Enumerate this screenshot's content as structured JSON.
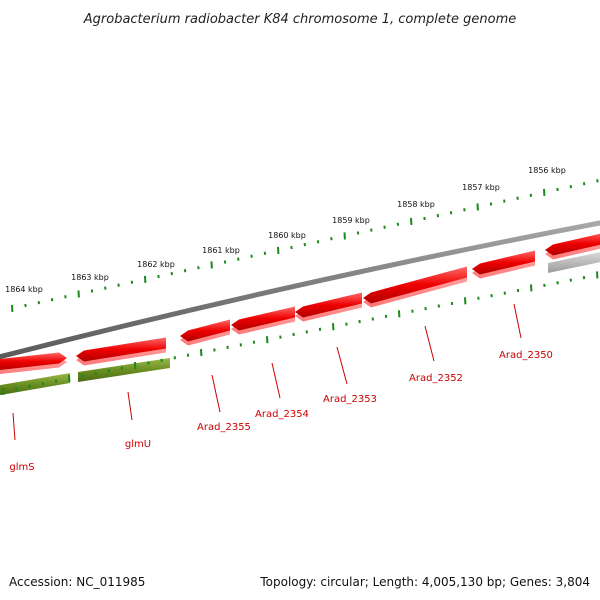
{
  "title": "Agrobacterium radiobacter K84 chromosome 1, complete genome",
  "footer": {
    "accession": "Accession: NC_011985",
    "summary": "Topology: circular; Length: 4,005,130 bp; Genes: 3,804"
  },
  "colors": {
    "forward_gene": "#ee1111",
    "reverse_gene": "#ee1111",
    "rna_gene": "#6b8e23",
    "other_gene": "#b8b8b8",
    "backbone": "#7a7a7a",
    "ticks": "#1a8a1a",
    "label": "#cc0000"
  },
  "scale_labels": [
    {
      "label": "1864 kbp"
    },
    {
      "label": "1863 kbp"
    },
    {
      "label": "1862 kbp"
    },
    {
      "label": "1861 kbp"
    },
    {
      "label": "1860 kbp"
    },
    {
      "label": "1859 kbp"
    },
    {
      "label": "1858 kbp"
    },
    {
      "label": "1857 kbp"
    },
    {
      "label": "1856 kbp"
    }
  ],
  "genes": [
    {
      "name": "glmS"
    },
    {
      "name": "glmU"
    },
    {
      "name": "Arad_2355"
    },
    {
      "name": "Arad_2354"
    },
    {
      "name": "Arad_2353"
    },
    {
      "name": "Arad_2352"
    },
    {
      "name": "Arad_2350"
    }
  ]
}
